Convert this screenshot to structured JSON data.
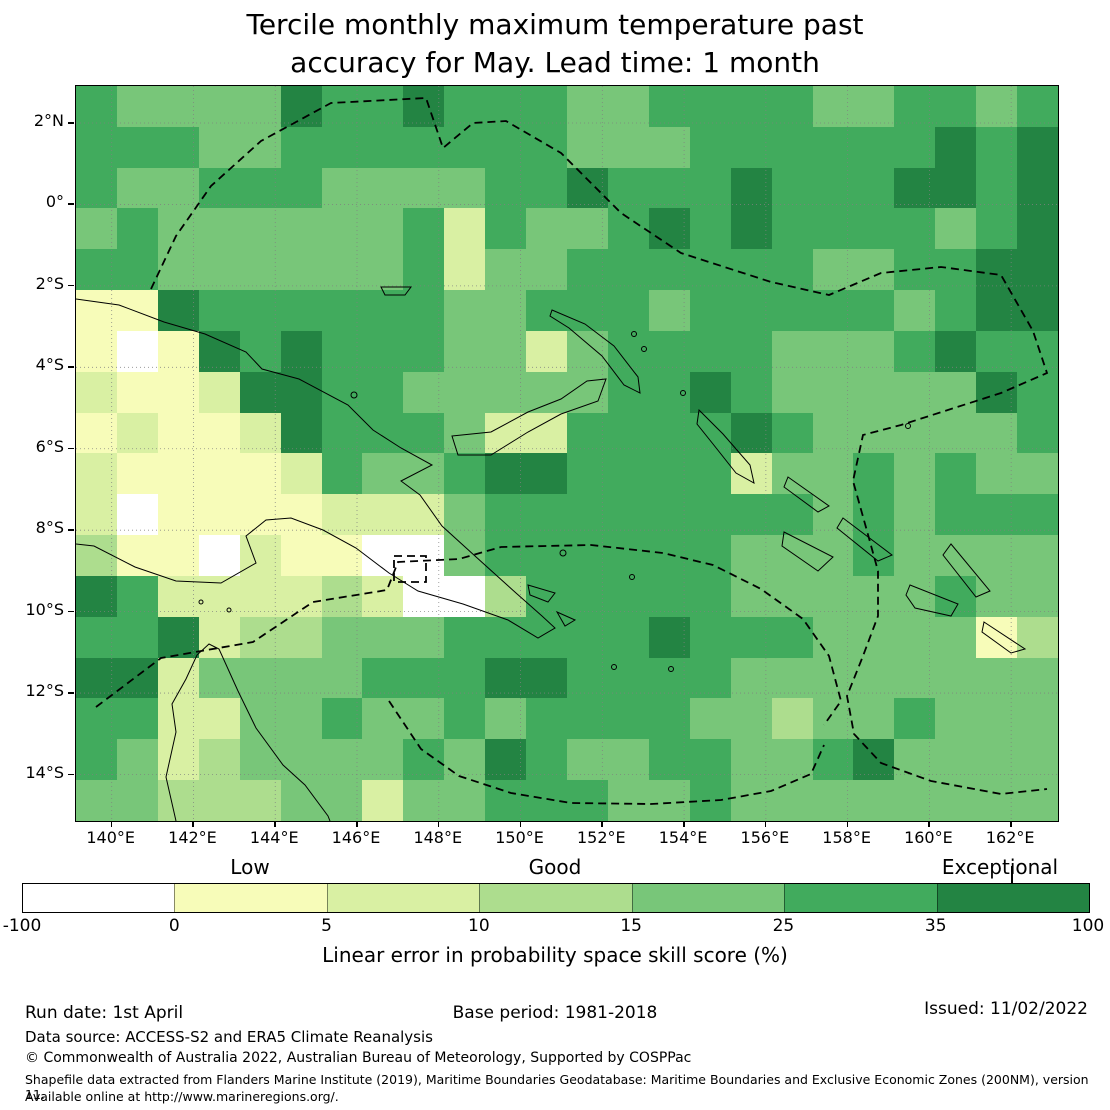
{
  "title": {
    "line1": "Tercile monthly maximum temperature past",
    "line2": "accuracy for May. Lead time: 1 month"
  },
  "chart_data": {
    "type": "heatmap",
    "title": "Tercile monthly maximum temperature past accuracy for May. Lead time: 1 month",
    "x_ticks": [
      "140°E",
      "142°E",
      "144°E",
      "146°E",
      "148°E",
      "150°E",
      "152°E",
      "154°E",
      "156°E",
      "158°E",
      "160°E",
      "162°E"
    ],
    "y_ticks": [
      "2°N",
      "0°",
      "2°S",
      "4°S",
      "6°S",
      "8°S",
      "10°S",
      "12°S",
      "14°S"
    ],
    "lon_range_deg_east": [
      139.2,
      163.2
    ],
    "lat_range_deg": [
      2.9,
      -15.1
    ],
    "cols": 24,
    "rows": 18,
    "palette": [
      "#ffffff",
      "#f7fcb9",
      "#d9f0a3",
      "#addd8e",
      "#78c679",
      "#41ab5d",
      "#238443"
    ],
    "palette_bins_percent": [
      "-100 to 0",
      "0 to 5",
      "5 to 10",
      "10 to 15",
      "15 to 25",
      "25 to 35",
      "35 to 100"
    ],
    "cells": [
      "544446556555445555445545",
      "555445555555444555555656",
      "544555444455655565556656",
      "454444445254456565555456",
      "554444445244555555445566",
      "116555555445554555554566",
      "101656555442455554445655",
      "211266554444455654444465",
      "121126555422555565444445",
      "211112544566555524454544",
      "201111222455555555454555",
      "311021100455555544454444",
      "652222320035555544444544",
      "556233444555556555444413",
      "662444455566555544444444",
      "552244544545555443445444",
      "542344445465445544564444",
      "443334424455544544444444"
    ],
    "colorbar_ticks": [
      -100,
      0,
      5,
      10,
      15,
      25,
      35,
      100
    ],
    "colorbar_label": "Linear error in probability space skill score (%)",
    "legend_categories": [
      "Low",
      "Good",
      "Exceptional"
    ],
    "legend_position": "bottom",
    "grid": "on"
  },
  "colorbar": {
    "tick_labels": [
      "-100",
      "0",
      "5",
      "10",
      "15",
      "25",
      "35",
      "100"
    ],
    "categories": [
      "Low",
      "Good",
      "Exceptional"
    ],
    "caption": "Linear error in probability space skill score (%)"
  },
  "footer": {
    "run_date": "Run date: 1st April",
    "base_period": "Base period: 1981-2018",
    "issued": "Issued: 11/02/2022",
    "data_source": "Data source: ACCESS-S2 and ERA5 Climate Reanalysis",
    "copyright": "© Commonwealth of Australia 2022, Australian Bureau of Meteorology, Supported by COSPPac",
    "shapefile_note": "Shapefile data extracted from Flanders Marine Institute (2019), Maritime Boundaries Geodatabase: Maritime Boundaries and Exclusive Economic Zones (200NM), version 11.",
    "available_note": "Available online at http://www.marineregions.org/."
  }
}
